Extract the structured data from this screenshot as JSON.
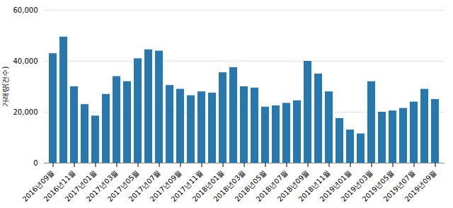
{
  "chart_data": {
    "type": "bar",
    "categories": [
      "2016년09월",
      null,
      "2016년11월",
      null,
      "2017년01월",
      null,
      "2017년03월",
      null,
      "2017년05월",
      null,
      "2017년07월",
      null,
      "2017년09월",
      null,
      "2017년11월",
      null,
      "2018년01월",
      null,
      "2018년03월",
      null,
      "2018년05월",
      null,
      "2018년07월",
      null,
      "2018년09월",
      null,
      "2018년11월",
      null,
      "2019년01월",
      null,
      "2019년03월",
      null,
      "2019년05월",
      null,
      "2019년07월",
      null,
      "2019년09월"
    ],
    "values": [
      43000,
      49500,
      30000,
      23000,
      18500,
      27000,
      34000,
      32000,
      41000,
      44500,
      44000,
      30500,
      29000,
      26500,
      28000,
      27500,
      35500,
      37500,
      30000,
      29500,
      22000,
      22500,
      23500,
      24500,
      40000,
      35000,
      28000,
      17500,
      13000,
      11500,
      32000,
      20000,
      20500,
      21500,
      24000,
      29000,
      25000
    ],
    "color": "#2878b0",
    "ylabel": "거래량(건수)",
    "ylim": [
      0,
      60000
    ],
    "yticks": [
      0,
      {
        "value": 20000,
        "label": "20,000"
      },
      {
        "value": 40000,
        "label": "40,000"
      },
      {
        "value": 60000,
        "label": "60,000"
      }
    ],
    "grid": true
  }
}
